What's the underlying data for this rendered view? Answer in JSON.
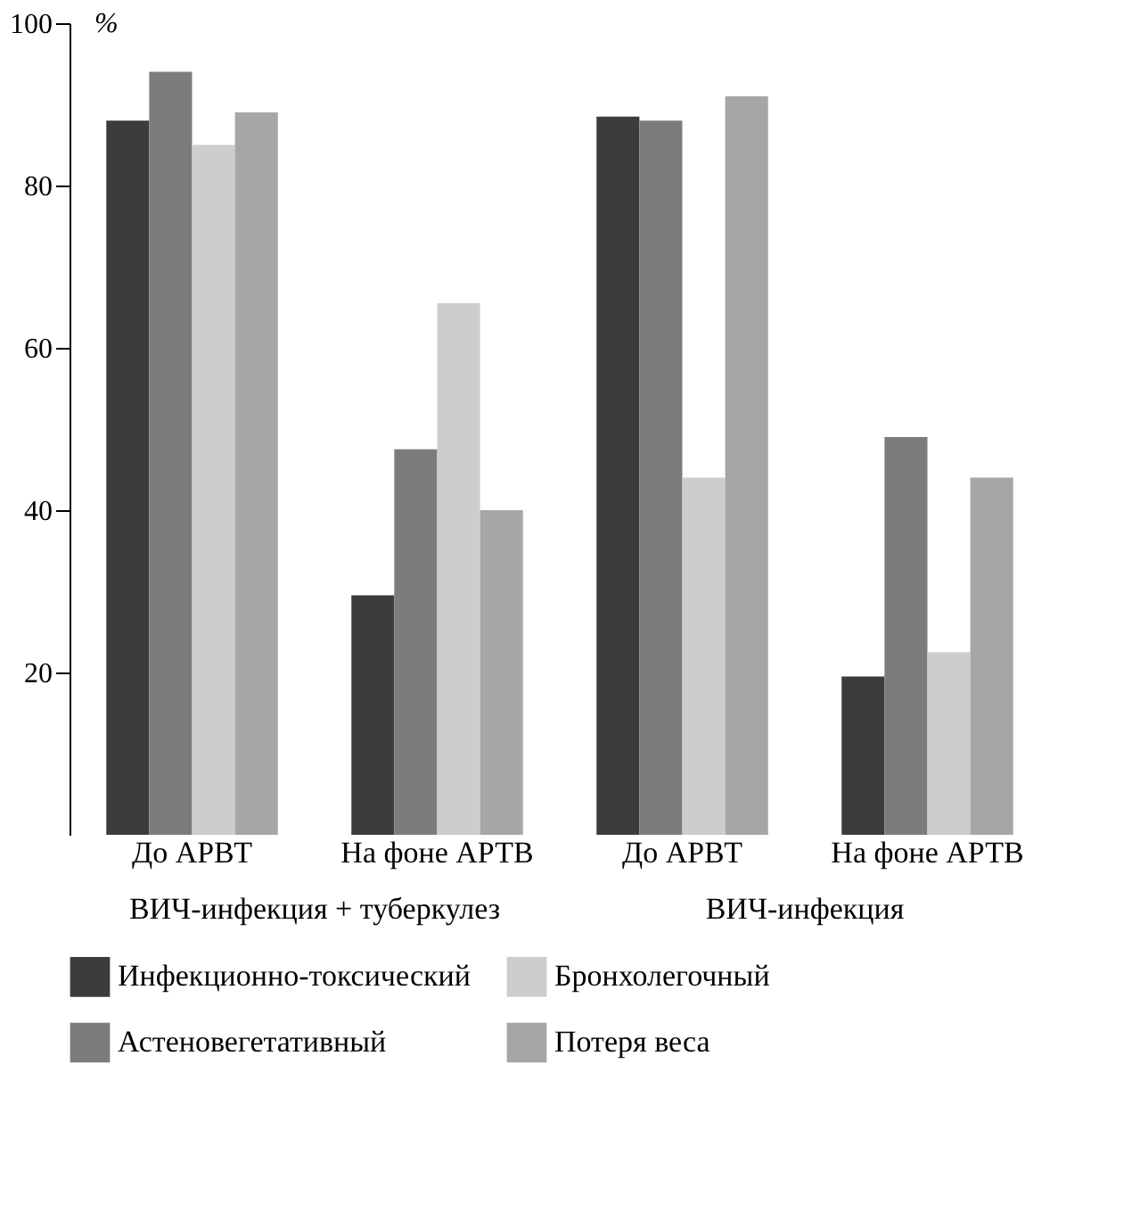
{
  "chart_data": {
    "type": "bar",
    "ylabel": "%",
    "categories": [
      "До АРВТ",
      "На фоне АРТВ",
      "До АРВТ",
      "На фоне АРТВ"
    ],
    "series": [
      {
        "name": "Инфекционно-токсический",
        "color": "#3c3c3c",
        "values": [
          88,
          29.5,
          88.5,
          19.5
        ]
      },
      {
        "name": "Астеновегетативный",
        "color": "#7c7c7c",
        "values": [
          94,
          47.5,
          88,
          49
        ]
      },
      {
        "name": "Бронхолегочный",
        "color": "#cdcdcd",
        "values": [
          85,
          65.5,
          44,
          22.5
        ]
      },
      {
        "name": "Потеря веса",
        "color": "#a6a6a6",
        "values": [
          89,
          40,
          91,
          44
        ]
      }
    ],
    "annotations": [
      "ВИЧ-инфекция + туберкулез",
      "ВИЧ-инфекция"
    ],
    "ylim": [
      0,
      100
    ],
    "yticks": [
      20,
      40,
      60,
      80,
      100
    ],
    "grid": false,
    "legend": "bottom"
  }
}
